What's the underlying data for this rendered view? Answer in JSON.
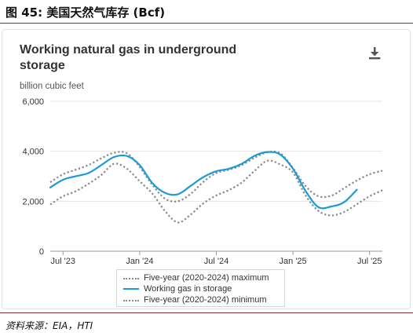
{
  "figure": {
    "title": "图 45:  美国天然气库存 (Bcf)",
    "source": "资料来源：EIA，HTI"
  },
  "toolbar": {
    "download_icon": "download-icon"
  },
  "chart_data": {
    "type": "line",
    "title": "Working natural gas in underground storage",
    "ylabel": "billion cubic feet",
    "xlabel": "",
    "ylim": [
      0,
      6000
    ],
    "yticks": [
      0,
      2000,
      4000,
      6000
    ],
    "y_tick_labels": [
      "0",
      "2,000",
      "4,000",
      "6,000"
    ],
    "xticks": [
      "2023-07",
      "2024-01",
      "2024-07",
      "2025-01",
      "2025-07"
    ],
    "x_tick_labels": [
      "Jul '23",
      "Jan '24",
      "Jul '24",
      "Jan '25",
      "Jul '25"
    ],
    "x_range": [
      "2023-06",
      "2025-08"
    ],
    "grid": "horizontal",
    "legend_position": "bottom-center",
    "colors": {
      "maximum": "#888888",
      "storage": "#1d9ad6",
      "minimum": "#888888",
      "grid": "#e6e6e6"
    },
    "series": [
      {
        "name": "Five-year (2020-2024) maximum",
        "style": "dotted",
        "x": [
          "2023-06",
          "2023-07",
          "2023-08",
          "2023-09",
          "2023-10",
          "2023-11",
          "2023-12",
          "2024-01",
          "2024-02",
          "2024-03",
          "2024-04",
          "2024-05",
          "2024-06",
          "2024-07",
          "2024-08",
          "2024-09",
          "2024-10",
          "2024-11",
          "2024-12",
          "2025-01",
          "2025-02",
          "2025-03",
          "2025-04",
          "2025-05",
          "2025-06",
          "2025-07",
          "2025-08"
        ],
        "values": [
          2760,
          3080,
          3260,
          3450,
          3720,
          3940,
          3920,
          3370,
          2650,
          2100,
          2000,
          2300,
          2780,
          3130,
          3260,
          3450,
          3740,
          3960,
          3920,
          3330,
          2600,
          2200,
          2220,
          2520,
          2830,
          3080,
          3220
        ]
      },
      {
        "name": "Working gas in storage",
        "style": "solid",
        "x": [
          "2023-06",
          "2023-07",
          "2023-08",
          "2023-09",
          "2023-10",
          "2023-11",
          "2023-12",
          "2024-01",
          "2024-02",
          "2024-03",
          "2024-04",
          "2024-05",
          "2024-06",
          "2024-07",
          "2024-08",
          "2024-09",
          "2024-10",
          "2024-11",
          "2024-12",
          "2025-01",
          "2025-02",
          "2025-03",
          "2025-04",
          "2025-05",
          "2025-06"
        ],
        "values": [
          2550,
          2860,
          3000,
          3130,
          3450,
          3770,
          3810,
          3450,
          2720,
          2330,
          2280,
          2620,
          2970,
          3200,
          3300,
          3500,
          3820,
          3970,
          3870,
          3300,
          2400,
          1760,
          1790,
          1960,
          2460
        ]
      },
      {
        "name": "Five-year (2020-2024) minimum",
        "style": "dotted",
        "x": [
          "2023-06",
          "2023-07",
          "2023-08",
          "2023-09",
          "2023-10",
          "2023-11",
          "2023-12",
          "2024-01",
          "2024-02",
          "2024-03",
          "2024-04",
          "2024-05",
          "2024-06",
          "2024-07",
          "2024-08",
          "2024-09",
          "2024-10",
          "2024-11",
          "2024-12",
          "2025-01",
          "2025-02",
          "2025-03",
          "2025-04",
          "2025-05",
          "2025-06",
          "2025-07",
          "2025-08"
        ],
        "values": [
          1870,
          2200,
          2400,
          2700,
          3050,
          3500,
          3300,
          2800,
          2300,
          1600,
          1150,
          1470,
          1920,
          2230,
          2450,
          2750,
          3220,
          3620,
          3470,
          3150,
          2220,
          1610,
          1430,
          1570,
          1880,
          2200,
          2440
        ]
      }
    ]
  }
}
